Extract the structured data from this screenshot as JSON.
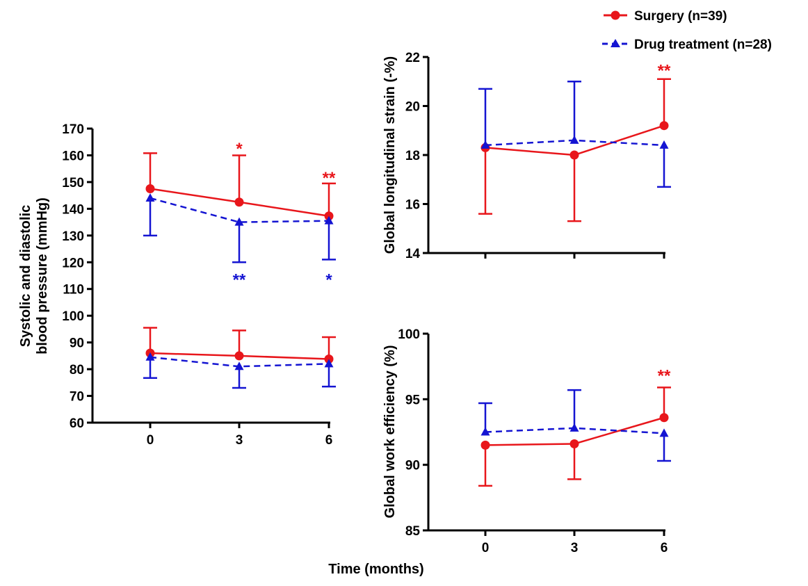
{
  "colors": {
    "surgery": "#e8161b",
    "drug": "#1414d2",
    "axis": "#000000"
  },
  "legend": {
    "surgery_label": "Surgery (n=39)",
    "drug_label": "Drug treatment (n=28)"
  },
  "shared_xlabel": "Time (months)",
  "chart_data": [
    {
      "id": "bp",
      "type": "line",
      "ylabel_lines": [
        "Systolic and diastolic",
        "blood pressure (mmHg)"
      ],
      "ylim": [
        60,
        170
      ],
      "yticks": [
        60,
        70,
        80,
        90,
        100,
        110,
        120,
        130,
        140,
        150,
        160,
        170
      ],
      "ytick_labels": [
        "60",
        "70",
        "80",
        "90",
        "100",
        "110",
        "120",
        "130",
        "140",
        "150",
        "160",
        "170"
      ],
      "x": [
        0,
        3,
        6
      ],
      "xtick_labels": [
        "0",
        "3",
        "6"
      ],
      "series": [
        {
          "group": "surgery",
          "name": "Surgery systolic",
          "values": [
            147.5,
            142.5,
            137.3
          ],
          "err": [
            13.3,
            17.5,
            12.2
          ],
          "err_dir": "up"
        },
        {
          "group": "drug",
          "name": "Drug systolic",
          "values": [
            144,
            135,
            135.5
          ],
          "err": [
            14,
            15,
            14.5
          ],
          "err_dir": "down"
        },
        {
          "group": "surgery",
          "name": "Surgery diastolic",
          "values": [
            86,
            85,
            83.8
          ],
          "err": [
            9.5,
            9.5,
            8.2
          ],
          "err_dir": "up"
        },
        {
          "group": "drug",
          "name": "Drug diastolic",
          "values": [
            84.5,
            81,
            82
          ],
          "err": [
            7.8,
            8,
            8.5
          ],
          "err_dir": "down"
        }
      ],
      "annotations": [
        {
          "text": "*",
          "x": 3,
          "y": 163,
          "group": "surgery"
        },
        {
          "text": "**",
          "x": 6,
          "y": 152,
          "group": "surgery"
        },
        {
          "text": "**",
          "x": 3,
          "y": 114,
          "group": "drug"
        },
        {
          "text": "*",
          "x": 6,
          "y": 114,
          "group": "drug"
        }
      ]
    },
    {
      "id": "gls",
      "type": "line",
      "ylabel_lines": [
        "Global longitudinal strain (-%)"
      ],
      "ylim": [
        14,
        22
      ],
      "yticks": [
        14,
        16,
        18,
        20,
        22
      ],
      "ytick_labels": [
        "14",
        "16",
        "18",
        "20",
        "22"
      ],
      "x": [
        0,
        3,
        6
      ],
      "xtick_labels": [
        "",
        "",
        ""
      ],
      "series": [
        {
          "group": "surgery",
          "name": "Surgery",
          "values": [
            18.3,
            18.0,
            19.2
          ],
          "err": [
            2.7,
            2.7,
            1.9
          ],
          "err_dir": "down0"
        },
        {
          "group": "drug",
          "name": "Drug treatment",
          "values": [
            18.4,
            18.6,
            18.4
          ],
          "err": [
            2.3,
            2.4,
            1.7
          ],
          "err_dir": "updown"
        }
      ],
      "annotations": [
        {
          "text": "**",
          "x": 6,
          "y": 21.5,
          "group": "surgery"
        }
      ]
    },
    {
      "id": "gwe",
      "type": "line",
      "ylabel_lines": [
        "Global work efficiency (%)"
      ],
      "ylim": [
        85,
        100
      ],
      "yticks": [
        85,
        90,
        95,
        100
      ],
      "ytick_labels": [
        "85",
        "90",
        "95",
        "100"
      ],
      "x": [
        0,
        3,
        6
      ],
      "xtick_labels": [
        "0",
        "3",
        "6"
      ],
      "series": [
        {
          "group": "surgery",
          "name": "Surgery",
          "values": [
            91.5,
            91.6,
            93.6
          ],
          "err": [
            3.1,
            2.7,
            2.3
          ],
          "err_dir": "downup"
        },
        {
          "group": "drug",
          "name": "Drug treatment",
          "values": [
            92.5,
            92.8,
            92.4
          ],
          "err": [
            2.2,
            2.9,
            2.1
          ],
          "err_dir": "updown"
        }
      ],
      "annotations": [
        {
          "text": "**",
          "x": 6,
          "y": 96.9,
          "group": "surgery"
        }
      ]
    }
  ]
}
